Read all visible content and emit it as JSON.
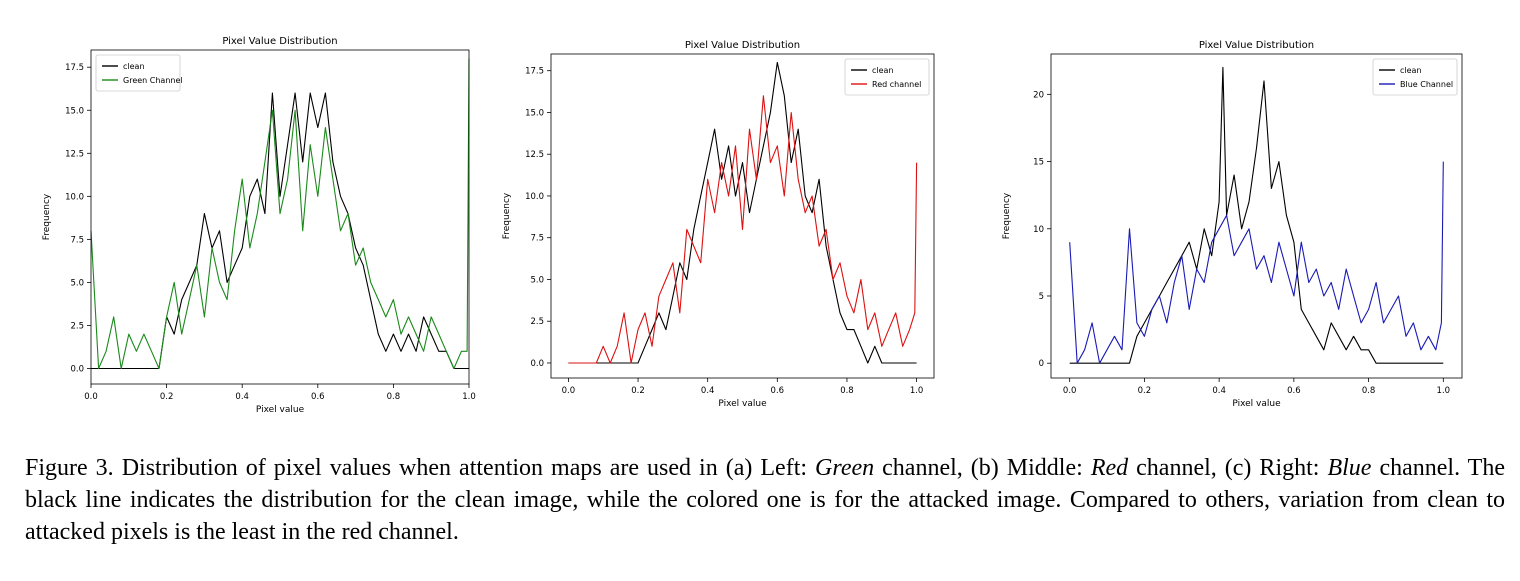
{
  "chart_data": [
    {
      "type": "line",
      "title": "Pixel Value Distribution",
      "xlabel": "Pixel value",
      "ylabel": "Frequency",
      "xlim": [
        0.0,
        1.0
      ],
      "ylim": [
        -0.9,
        18.5
      ],
      "xticks": [
        "0.0",
        "0.2",
        "0.4",
        "0.6",
        "0.8",
        "1.0"
      ],
      "yticks": [
        "0.0",
        "2.5",
        "5.0",
        "7.5",
        "10.0",
        "12.5",
        "15.0",
        "17.5"
      ],
      "legend": "top-left",
      "series": [
        {
          "name": "clean",
          "color": "#000000",
          "x": [
            0.0,
            0.02,
            0.04,
            0.06,
            0.08,
            0.1,
            0.12,
            0.14,
            0.16,
            0.18,
            0.2,
            0.22,
            0.24,
            0.26,
            0.28,
            0.3,
            0.32,
            0.34,
            0.36,
            0.38,
            0.4,
            0.42,
            0.44,
            0.46,
            0.48,
            0.5,
            0.52,
            0.54,
            0.56,
            0.58,
            0.6,
            0.62,
            0.64,
            0.66,
            0.68,
            0.7,
            0.72,
            0.74,
            0.76,
            0.78,
            0.8,
            0.82,
            0.84,
            0.86,
            0.88,
            0.9,
            0.92,
            0.94,
            0.96,
            0.98,
            1.0
          ],
          "y": [
            0,
            0,
            0,
            0,
            0,
            0,
            0,
            0,
            0,
            0,
            3,
            2,
            4,
            5,
            6,
            9,
            7,
            8,
            5,
            6,
            7,
            10,
            11,
            9,
            16,
            10,
            13,
            16,
            12,
            16,
            14,
            16,
            12,
            10,
            9,
            7,
            6,
            4,
            2,
            1,
            2,
            1,
            2,
            1,
            3,
            2,
            1,
            1,
            0,
            0,
            0
          ]
        },
        {
          "name": "Green Channel",
          "color": "#1a8a1a",
          "x": [
            0.0,
            0.02,
            0.04,
            0.06,
            0.08,
            0.1,
            0.12,
            0.14,
            0.16,
            0.18,
            0.2,
            0.22,
            0.24,
            0.26,
            0.28,
            0.3,
            0.32,
            0.34,
            0.36,
            0.38,
            0.4,
            0.42,
            0.44,
            0.46,
            0.48,
            0.5,
            0.52,
            0.54,
            0.56,
            0.58,
            0.6,
            0.62,
            0.64,
            0.66,
            0.68,
            0.7,
            0.72,
            0.74,
            0.76,
            0.78,
            0.8,
            0.82,
            0.84,
            0.86,
            0.88,
            0.9,
            0.92,
            0.94,
            0.96,
            0.98,
            0.995,
            1.0
          ],
          "y": [
            8,
            0,
            1,
            3,
            0,
            2,
            1,
            2,
            1,
            0,
            3,
            5,
            2,
            4,
            6,
            3,
            7,
            5,
            4,
            8,
            11,
            7,
            9,
            12,
            15,
            9,
            11,
            15,
            8,
            13,
            10,
            14,
            11,
            8,
            9,
            6,
            7,
            5,
            4,
            3,
            4,
            2,
            3,
            2,
            1,
            3,
            2,
            1,
            0,
            1,
            1,
            18
          ]
        }
      ]
    },
    {
      "type": "line",
      "title": "Pixel Value Distribution",
      "xlabel": "Pixel value",
      "ylabel": "Frequency",
      "xlim": [
        -0.05,
        1.05
      ],
      "ylim": [
        -0.9,
        18.5
      ],
      "xticks": [
        "0.0",
        "0.2",
        "0.4",
        "0.6",
        "0.8",
        "1.0"
      ],
      "yticks": [
        "0.0",
        "2.5",
        "5.0",
        "7.5",
        "10.0",
        "12.5",
        "15.0",
        "17.5"
      ],
      "legend": "top-right",
      "series": [
        {
          "name": "clean",
          "color": "#000000",
          "x": [
            0.0,
            0.02,
            0.04,
            0.06,
            0.08,
            0.1,
            0.12,
            0.14,
            0.16,
            0.18,
            0.2,
            0.22,
            0.24,
            0.26,
            0.28,
            0.3,
            0.32,
            0.34,
            0.36,
            0.38,
            0.4,
            0.42,
            0.44,
            0.46,
            0.48,
            0.5,
            0.52,
            0.54,
            0.56,
            0.58,
            0.6,
            0.62,
            0.64,
            0.66,
            0.68,
            0.7,
            0.72,
            0.74,
            0.76,
            0.78,
            0.8,
            0.82,
            0.84,
            0.86,
            0.88,
            0.9,
            0.92,
            0.94,
            0.96,
            0.98,
            1.0
          ],
          "y": [
            0,
            0,
            0,
            0,
            0,
            0,
            0,
            0,
            0,
            0,
            0,
            1,
            2,
            3,
            2,
            4,
            6,
            5,
            8,
            10,
            12,
            14,
            11,
            13,
            10,
            12,
            9,
            11,
            13,
            15,
            18,
            16,
            12,
            14,
            10,
            9,
            11,
            7,
            5,
            3,
            2,
            2,
            1,
            0,
            1,
            0,
            0,
            0,
            0,
            0,
            0
          ]
        },
        {
          "name": "Red channel",
          "color": "#dd1111",
          "x": [
            0.0,
            0.02,
            0.04,
            0.06,
            0.08,
            0.1,
            0.12,
            0.14,
            0.16,
            0.18,
            0.2,
            0.22,
            0.24,
            0.26,
            0.28,
            0.3,
            0.32,
            0.34,
            0.36,
            0.38,
            0.4,
            0.42,
            0.44,
            0.46,
            0.48,
            0.5,
            0.52,
            0.54,
            0.56,
            0.58,
            0.6,
            0.62,
            0.64,
            0.66,
            0.68,
            0.7,
            0.72,
            0.74,
            0.76,
            0.78,
            0.8,
            0.82,
            0.84,
            0.86,
            0.88,
            0.9,
            0.92,
            0.94,
            0.96,
            0.98,
            0.995,
            1.0
          ],
          "y": [
            0,
            0,
            0,
            0,
            0,
            1,
            0,
            1,
            3,
            0,
            2,
            3,
            1,
            4,
            5,
            6,
            3,
            8,
            7,
            6,
            11,
            9,
            12,
            10,
            13,
            8,
            14,
            11,
            16,
            12,
            13,
            10,
            15,
            11,
            9,
            10,
            7,
            8,
            5,
            6,
            4,
            3,
            5,
            2,
            3,
            1,
            2,
            3,
            1,
            2,
            3,
            12
          ]
        }
      ]
    },
    {
      "type": "line",
      "title": "Pixel Value Distribution",
      "xlabel": "Pixel value",
      "ylabel": "Frequency",
      "xlim": [
        -0.05,
        1.05
      ],
      "ylim": [
        -1.1,
        23.0
      ],
      "xticks": [
        "0.0",
        "0.2",
        "0.4",
        "0.6",
        "0.8",
        "1.0"
      ],
      "yticks": [
        "0",
        "5",
        "10",
        "15",
        "20"
      ],
      "legend": "top-right",
      "series": [
        {
          "name": "clean",
          "color": "#000000",
          "x": [
            0.0,
            0.02,
            0.04,
            0.06,
            0.08,
            0.1,
            0.12,
            0.14,
            0.16,
            0.18,
            0.2,
            0.22,
            0.24,
            0.26,
            0.28,
            0.3,
            0.32,
            0.34,
            0.36,
            0.38,
            0.4,
            0.41,
            0.42,
            0.44,
            0.46,
            0.48,
            0.5,
            0.52,
            0.54,
            0.56,
            0.58,
            0.6,
            0.62,
            0.64,
            0.66,
            0.68,
            0.7,
            0.72,
            0.74,
            0.76,
            0.78,
            0.8,
            0.82,
            0.84,
            0.86,
            0.88,
            0.9,
            0.92,
            0.94,
            0.96,
            0.98,
            1.0
          ],
          "y": [
            0,
            0,
            0,
            0,
            0,
            0,
            0,
            0,
            0,
            2,
            3,
            4,
            5,
            6,
            7,
            8,
            9,
            7,
            10,
            8,
            12,
            22,
            11,
            14,
            10,
            12,
            16,
            21,
            13,
            15,
            11,
            9,
            4,
            3,
            2,
            1,
            3,
            2,
            1,
            2,
            1,
            1,
            0,
            0,
            0,
            0,
            0,
            0,
            0,
            0,
            0,
            0
          ]
        },
        {
          "name": "Blue Channel",
          "color": "#1a1ab5",
          "x": [
            0.0,
            0.02,
            0.04,
            0.06,
            0.08,
            0.1,
            0.12,
            0.14,
            0.16,
            0.18,
            0.2,
            0.22,
            0.24,
            0.26,
            0.28,
            0.3,
            0.32,
            0.34,
            0.36,
            0.38,
            0.4,
            0.42,
            0.44,
            0.46,
            0.48,
            0.5,
            0.52,
            0.54,
            0.56,
            0.58,
            0.6,
            0.62,
            0.64,
            0.66,
            0.68,
            0.7,
            0.72,
            0.74,
            0.76,
            0.78,
            0.8,
            0.82,
            0.84,
            0.86,
            0.88,
            0.9,
            0.92,
            0.94,
            0.96,
            0.98,
            0.995,
            1.0
          ],
          "y": [
            9,
            0,
            1,
            3,
            0,
            1,
            2,
            1,
            10,
            3,
            2,
            4,
            5,
            3,
            6,
            8,
            4,
            7,
            6,
            9,
            10,
            11,
            8,
            9,
            10,
            7,
            8,
            6,
            9,
            7,
            5,
            9,
            6,
            7,
            5,
            6,
            4,
            7,
            5,
            3,
            4,
            6,
            3,
            4,
            5,
            2,
            3,
            1,
            2,
            1,
            3,
            15
          ]
        }
      ]
    }
  ],
  "caption": {
    "p1": "Figure 3. Distribution of pixel values when attention maps are used in (a) Left: ",
    "i1": "Green",
    "p2": " channel, (b) Middle: ",
    "i2": "Red",
    "p3": " channel, (c) Right: ",
    "i3": "Blue",
    "p4": " channel. The black line indicates the distribution for the clean image, while the colored one is for the attacked image. Compared to others, variation from clean to attacked pixels is the least in the red channel."
  }
}
